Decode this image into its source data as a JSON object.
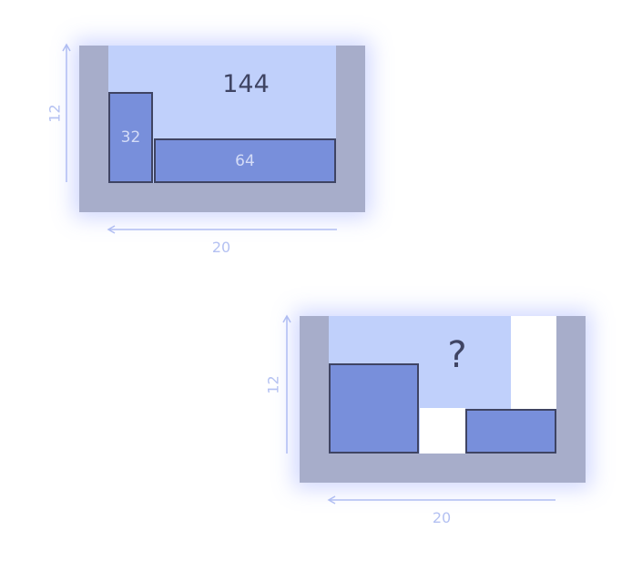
{
  "puzzles": [
    {
      "water_volume": "144",
      "blocks": [
        {
          "label": "32"
        },
        {
          "label": "64"
        }
      ],
      "height": "12",
      "width": "20"
    },
    {
      "water_volume": "?",
      "blocks": [
        {
          "label": ""
        },
        {
          "label": ""
        }
      ],
      "height": "12",
      "width": "20"
    }
  ],
  "colors": {
    "frame": "#a7adca",
    "water": "#c0d0fb",
    "block_fill": "#788fdb",
    "block_stroke": "#3f4463",
    "dimension": "#b4c1f2"
  }
}
